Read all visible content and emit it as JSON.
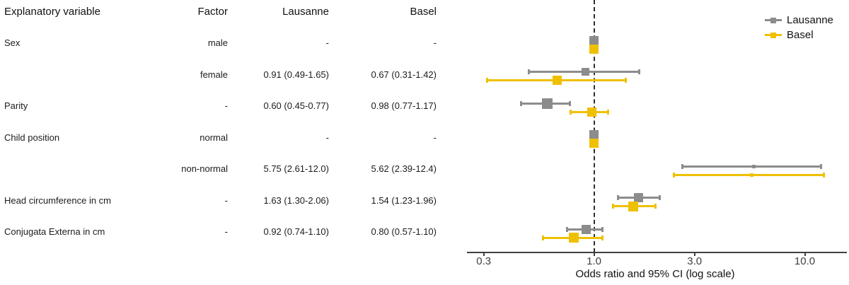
{
  "table": {
    "headers": [
      "Explanatory variable",
      "Factor",
      "Lausanne",
      "Basel"
    ],
    "rows": [
      {
        "variable": "Sex",
        "factor": "male",
        "lausanne": "-",
        "basel": "-"
      },
      {
        "variable": "",
        "factor": "female",
        "lausanne": "0.91 (0.49-1.65)",
        "basel": "0.67 (0.31-1.42)"
      },
      {
        "variable": "Parity",
        "factor": "-",
        "lausanne": "0.60 (0.45-0.77)",
        "basel": "0.98 (0.77-1.17)"
      },
      {
        "variable": "Child position",
        "factor": "normal",
        "lausanne": "-",
        "basel": "-"
      },
      {
        "variable": "",
        "factor": "non-normal",
        "lausanne": "5.75 (2.61-12.0)",
        "basel": "5.62 (2.39-12.4)"
      },
      {
        "variable": "Head circumference in cm",
        "factor": "-",
        "lausanne": "1.63 (1.30-2.06)",
        "basel": "1.54 (1.23-1.96)"
      },
      {
        "variable": "Conjugata Externa in cm",
        "factor": "-",
        "lausanne": "0.92 (0.74-1.10)",
        "basel": "0.80 (0.57-1.10)"
      }
    ]
  },
  "chart_data": {
    "type": "scatter",
    "subtype": "forest-plot",
    "x_scale": "log",
    "xlabel": "Odds ratio and 95% CI (log scale)",
    "x_ticks": [
      "0.3",
      "1.0",
      "3.0",
      "10.0"
    ],
    "x_tick_values": [
      0.3,
      1.0,
      3.0,
      10.0
    ],
    "x_domain": [
      0.25,
      16.0
    ],
    "reference_line": 1.0,
    "grid": false,
    "legend_position": "top-right",
    "series": [
      {
        "name": "Lausanne",
        "color": "#8C8C8C"
      },
      {
        "name": "Basel",
        "color": "#EFC000"
      }
    ],
    "points": [
      {
        "row": 0,
        "series": "Lausanne",
        "or": 1.0,
        "reference": true,
        "marker": 13
      },
      {
        "row": 0,
        "series": "Basel",
        "or": 1.0,
        "reference": true,
        "marker": 13
      },
      {
        "row": 1,
        "series": "Lausanne",
        "or": 0.91,
        "lo": 0.49,
        "hi": 1.65,
        "marker": 11
      },
      {
        "row": 1,
        "series": "Basel",
        "or": 0.67,
        "lo": 0.31,
        "hi": 1.42,
        "marker": 13
      },
      {
        "row": 2,
        "series": "Lausanne",
        "or": 0.6,
        "lo": 0.45,
        "hi": 0.77,
        "marker": 15
      },
      {
        "row": 2,
        "series": "Basel",
        "or": 0.98,
        "lo": 0.77,
        "hi": 1.17,
        "marker": 13
      },
      {
        "row": 3,
        "series": "Lausanne",
        "or": 1.0,
        "reference": true,
        "marker": 13
      },
      {
        "row": 3,
        "series": "Basel",
        "or": 1.0,
        "reference": true,
        "marker": 13
      },
      {
        "row": 4,
        "series": "Lausanne",
        "or": 5.75,
        "lo": 2.61,
        "hi": 12.0,
        "marker": 5
      },
      {
        "row": 4,
        "series": "Basel",
        "or": 5.62,
        "lo": 2.39,
        "hi": 12.4,
        "marker": 5
      },
      {
        "row": 5,
        "series": "Lausanne",
        "or": 1.63,
        "lo": 1.3,
        "hi": 2.06,
        "marker": 13
      },
      {
        "row": 5,
        "series": "Basel",
        "or": 1.54,
        "lo": 1.23,
        "hi": 1.96,
        "marker": 14
      },
      {
        "row": 6,
        "series": "Lausanne",
        "or": 0.92,
        "lo": 0.74,
        "hi": 1.1,
        "marker": 13
      },
      {
        "row": 6,
        "series": "Basel",
        "or": 0.8,
        "lo": 0.57,
        "hi": 1.1,
        "marker": 14
      }
    ]
  }
}
